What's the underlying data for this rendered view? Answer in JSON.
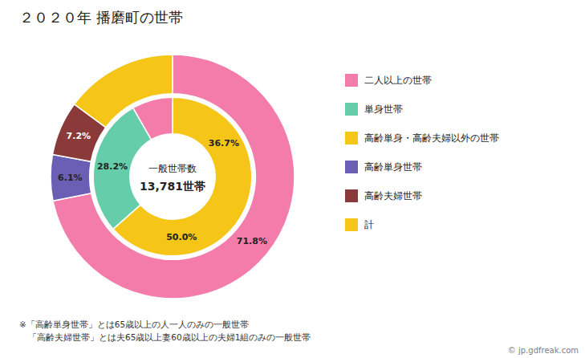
{
  "chart_data": {
    "type": "pie",
    "title": "２０２０年 播磨町の世帯",
    "center_text": [
      "一般世帯数",
      "13,781世帯"
    ],
    "data_labels": true,
    "series": [
      {
        "values": [
          71.8,
          6.1,
          7.2,
          14.9
        ],
        "colors": [
          "#f47caa",
          "#6b5fb5",
          "#8b3a3a",
          "#f5c518"
        ],
        "value_labels": [
          "71.8%",
          "6.1%",
          "7.2%",
          null
        ]
      },
      {
        "values": [
          63.5,
          28.2,
          8.3
        ],
        "colors": [
          "#f5c518",
          "#66cdaa",
          "#f47caa"
        ],
        "value_labels": [
          null,
          "28.2%",
          null
        ]
      }
    ],
    "annotations": [
      {
        "text": "36.7%",
        "series": 1,
        "index": 0
      },
      {
        "text": "50.0%",
        "series": 1,
        "index": 0
      }
    ],
    "legend": "right",
    "legend_entries": [
      {
        "name": "二人以上の世帯",
        "color": "#f47caa"
      },
      {
        "name": "単身世帯",
        "color": "#66cdaa"
      },
      {
        "name": "高齢単身・高齢夫婦以外の世帯",
        "color": "#f5c518"
      },
      {
        "name": "高齢単身世帯",
        "color": "#6b5fb5"
      },
      {
        "name": "高齢夫婦世帯",
        "color": "#8b3a3a"
      },
      {
        "name": "計",
        "color": "#f5c518"
      }
    ],
    "notes": [
      "※「高齢単身世帯」とは65歳以上の人一人のみの一般世帯",
      "　「高齢夫婦世帯」とは夫65歳以上妻60歳以上の夫婦1組のみの一般世帯"
    ],
    "watermark": "© jp.gdfreak.com"
  }
}
